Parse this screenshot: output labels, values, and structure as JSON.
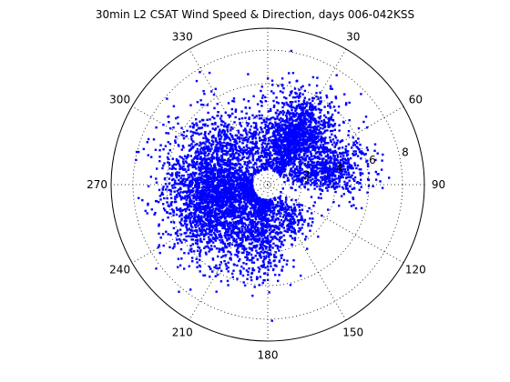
{
  "chart_data": {
    "type": "scatter",
    "coordinate_system": "polar",
    "title": "30min L2 CSAT Wind Speed & Direction, days 006-042KSS",
    "angle_ticks": [
      "30",
      "60",
      "90",
      "120",
      "150",
      "180",
      "210",
      "240",
      "270",
      "300",
      "330"
    ],
    "angle_tick_degrees": [
      30,
      60,
      90,
      120,
      150,
      180,
      210,
      240,
      270,
      300,
      330
    ],
    "radius_ticks": [
      "2",
      "4",
      "6",
      "8"
    ],
    "radius_tick_values": [
      2,
      4,
      6,
      8
    ],
    "rlim": [
      0,
      9.3
    ],
    "angle_zero": "top",
    "angle_direction": "clockwise",
    "grid": true,
    "marker_color": "#0000ff",
    "series": [
      {
        "lobes": [
          {
            "center_deg": 30,
            "spread_deg": 13,
            "r_mean": 3.5,
            "r_sd": 1.3,
            "count": 1400
          },
          {
            "center_deg": 75,
            "spread_deg": 12,
            "r_mean": 3.8,
            "r_sd": 1.2,
            "count": 700
          },
          {
            "center_deg": 145,
            "spread_deg": 12,
            "r_mean": 2.3,
            "r_sd": 0.8,
            "count": 200
          },
          {
            "center_deg": 185,
            "spread_deg": 12,
            "r_mean": 2.8,
            "r_sd": 1.4,
            "count": 500
          },
          {
            "center_deg": 250,
            "spread_deg": 30,
            "r_mean": 3.5,
            "r_sd": 1.5,
            "count": 2600
          },
          {
            "center_deg": 300,
            "spread_deg": 22,
            "r_mean": 4.0,
            "r_sd": 1.4,
            "count": 600
          },
          {
            "center_deg": 350,
            "spread_deg": 15,
            "r_mean": 2.5,
            "r_sd": 1.0,
            "count": 250
          }
        ]
      }
    ]
  }
}
